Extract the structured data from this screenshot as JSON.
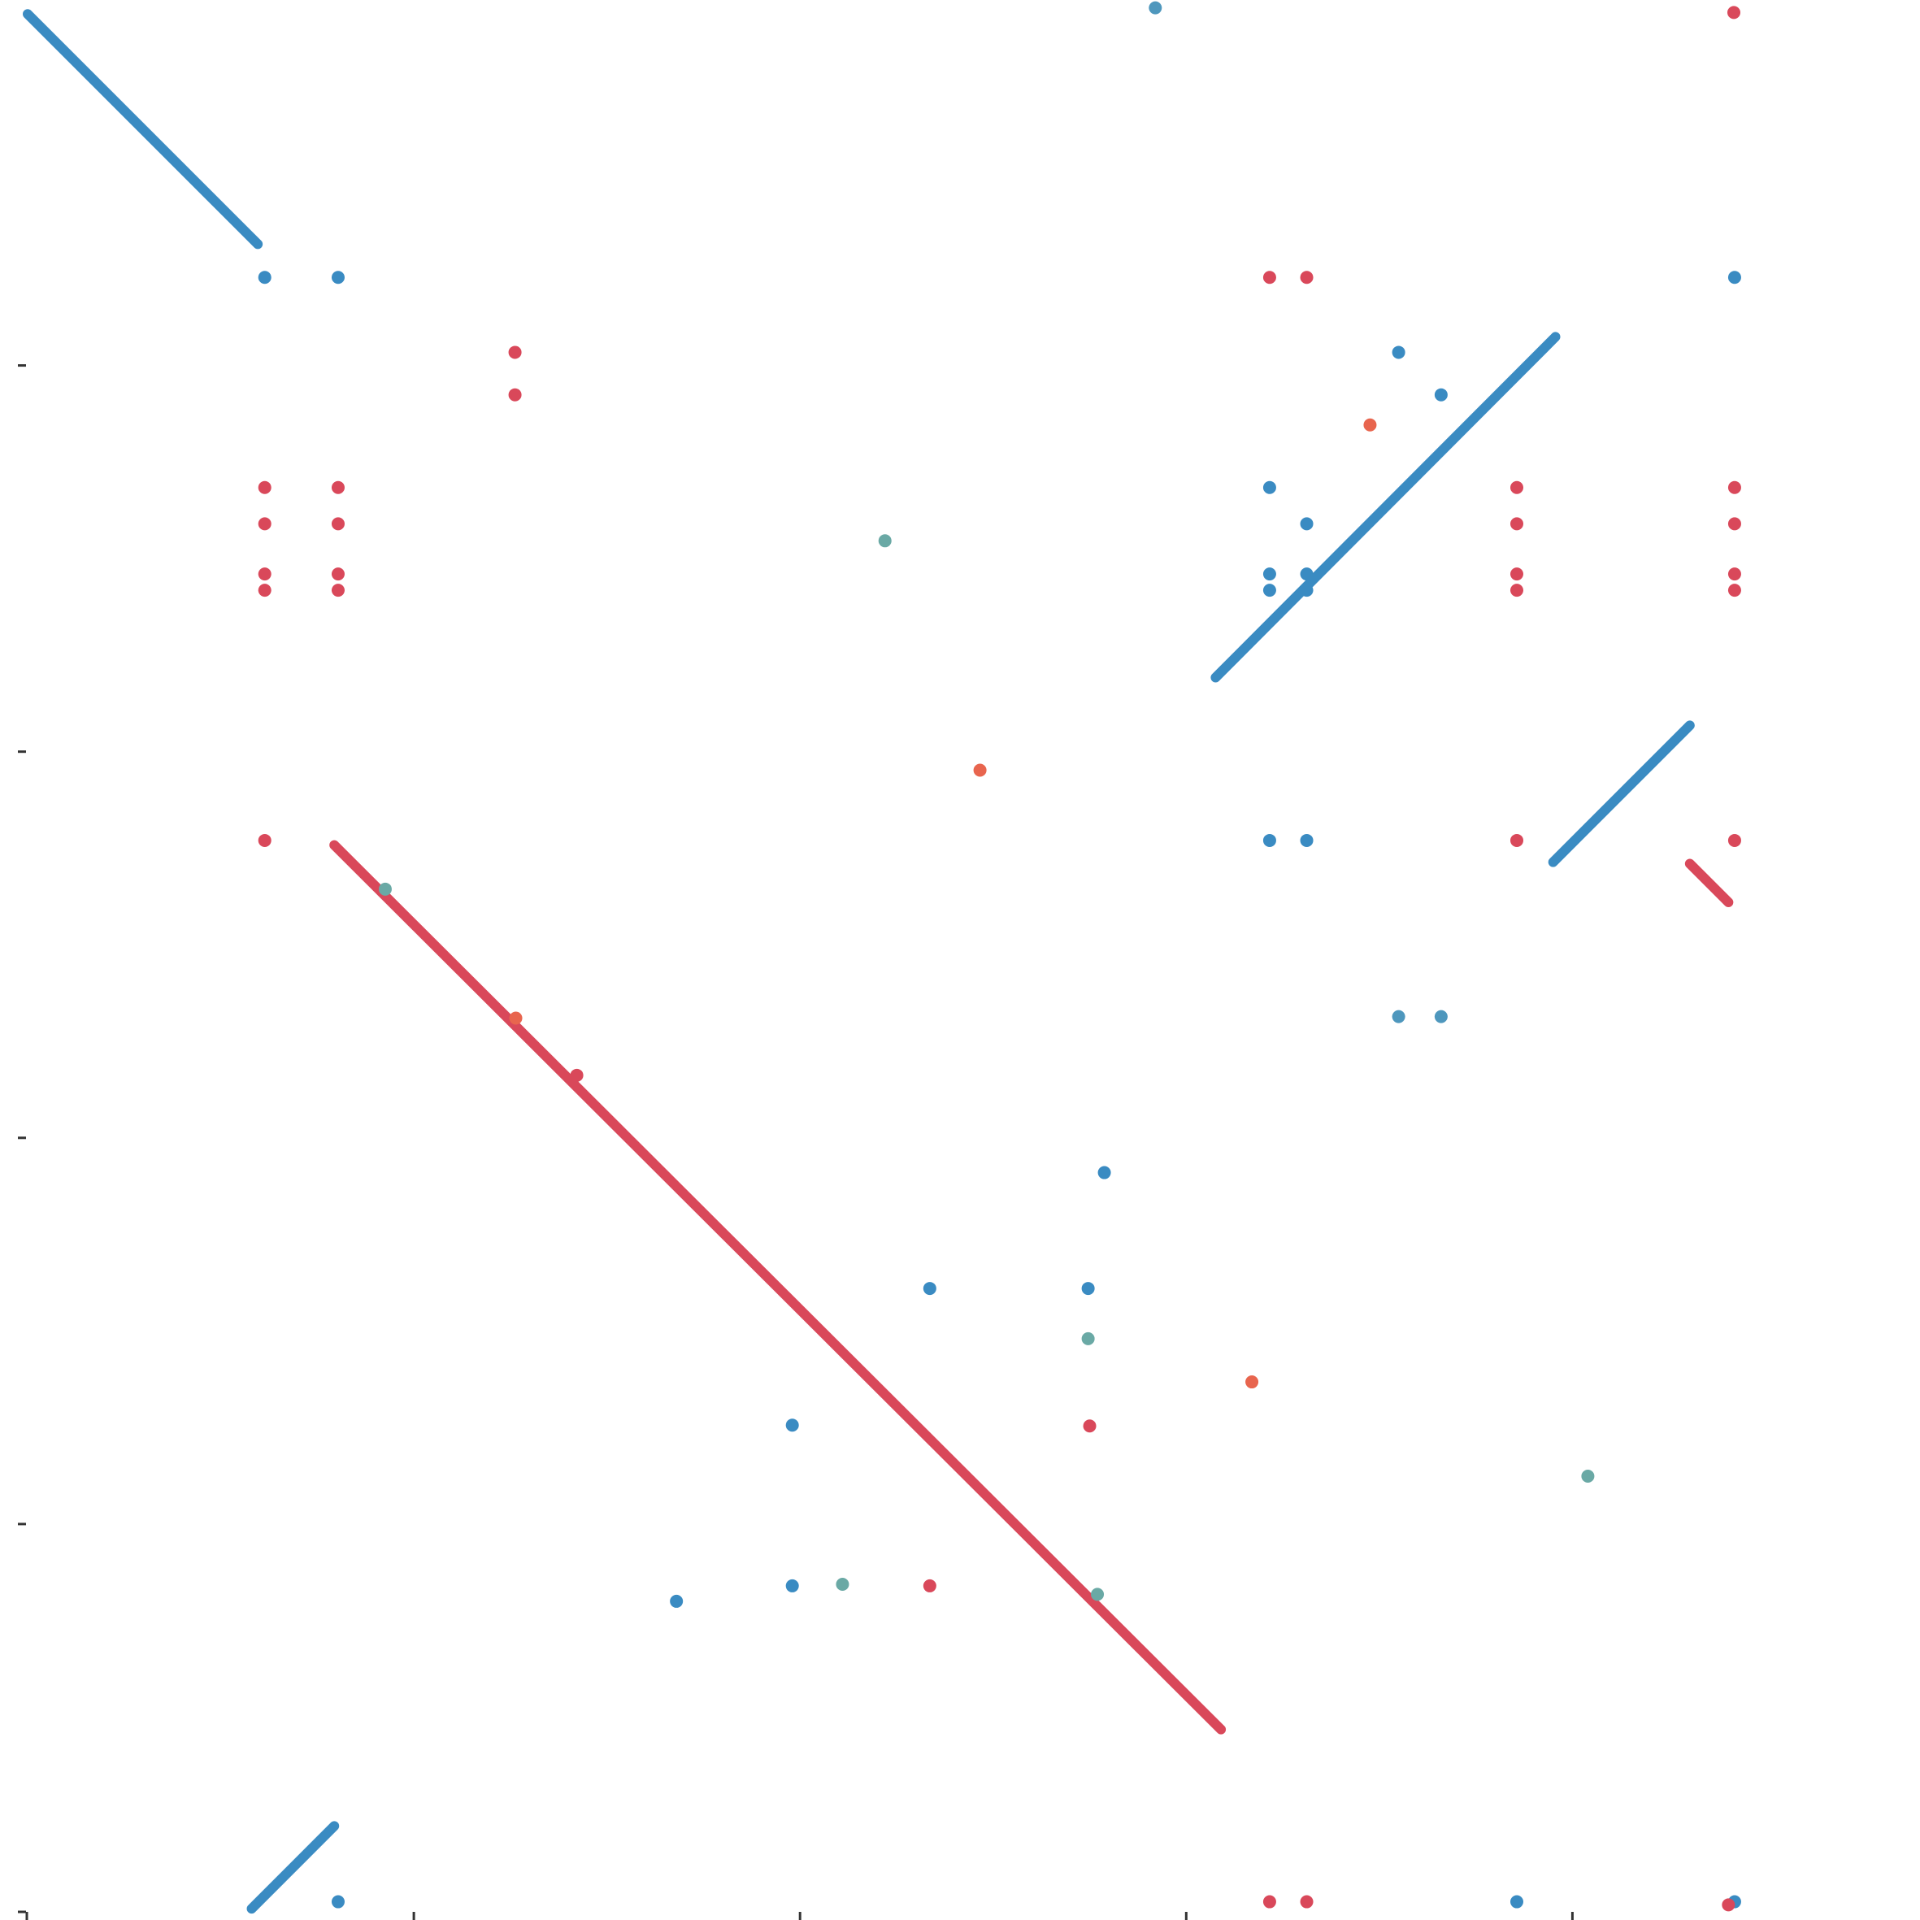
{
  "chart_data": {
    "type": "scatter",
    "title": "",
    "xlabel": "",
    "ylabel": "",
    "xlim": [
      0,
      2450
    ],
    "ylim": [
      0,
      2450
    ],
    "grid": false,
    "legend": "none",
    "x_ticks": [
      500,
      1000,
      1500,
      2000
    ],
    "y_ticks": [
      500,
      1000,
      1500,
      2000
    ],
    "colors": {
      "forward": "#3a8bc2",
      "reverse": "#d9485a",
      "teal": "#6aa9a5",
      "orange": "#e8654e",
      "steel": "#4e97bd",
      "axis": "#333333"
    },
    "segments": [
      {
        "x": [
          0,
          298
        ],
        "y": [
          2455,
          2157
        ],
        "color": "forward"
      },
      {
        "x": [
          1538,
          1978
        ],
        "y": [
          1596,
          2037
        ],
        "color": "forward"
      },
      {
        "x": [
          1975,
          2152
        ],
        "y": [
          1357,
          1534
        ],
        "color": "forward"
      },
      {
        "x": [
          290,
          397
        ],
        "y": [
          2,
          109
        ],
        "color": "forward"
      },
      {
        "x": [
          397,
          1545
        ],
        "y": [
          1379,
          234
        ],
        "color": "reverse"
      },
      {
        "x": [
          2152,
          2202
        ],
        "y": [
          1355,
          1305
        ],
        "color": "reverse"
      }
    ],
    "points": [
      {
        "x": 1460,
        "y": 2519,
        "color": "steel"
      },
      {
        "x": 1460,
        "y": 2463,
        "color": "steel"
      },
      {
        "x": 2209,
        "y": 2457,
        "color": "reverse"
      },
      {
        "x": 307,
        "y": 2114,
        "color": "forward"
      },
      {
        "x": 402,
        "y": 2114,
        "color": "forward"
      },
      {
        "x": 1608,
        "y": 2114,
        "color": "reverse"
      },
      {
        "x": 1656,
        "y": 2114,
        "color": "reverse"
      },
      {
        "x": 2210,
        "y": 2114,
        "color": "forward"
      },
      {
        "x": 631,
        "y": 2017,
        "color": "reverse"
      },
      {
        "x": 631,
        "y": 1962,
        "color": "reverse"
      },
      {
        "x": 1775,
        "y": 2017,
        "color": "forward"
      },
      {
        "x": 1830,
        "y": 1962,
        "color": "forward"
      },
      {
        "x": 1738,
        "y": 1923,
        "color": "orange"
      },
      {
        "x": 307,
        "y": 1842,
        "color": "reverse"
      },
      {
        "x": 402,
        "y": 1842,
        "color": "reverse"
      },
      {
        "x": 1608,
        "y": 1842,
        "color": "forward"
      },
      {
        "x": 1928,
        "y": 1842,
        "color": "reverse"
      },
      {
        "x": 2210,
        "y": 1842,
        "color": "reverse"
      },
      {
        "x": 307,
        "y": 1795,
        "color": "reverse"
      },
      {
        "x": 402,
        "y": 1795,
        "color": "reverse"
      },
      {
        "x": 1656,
        "y": 1795,
        "color": "forward"
      },
      {
        "x": 1928,
        "y": 1795,
        "color": "reverse"
      },
      {
        "x": 2210,
        "y": 1795,
        "color": "reverse"
      },
      {
        "x": 1110,
        "y": 1773,
        "color": "teal"
      },
      {
        "x": 307,
        "y": 1730,
        "color": "reverse"
      },
      {
        "x": 402,
        "y": 1730,
        "color": "reverse"
      },
      {
        "x": 1608,
        "y": 1730,
        "color": "forward"
      },
      {
        "x": 1656,
        "y": 1730,
        "color": "forward"
      },
      {
        "x": 1928,
        "y": 1730,
        "color": "reverse"
      },
      {
        "x": 2210,
        "y": 1730,
        "color": "reverse"
      },
      {
        "x": 307,
        "y": 1709,
        "color": "reverse"
      },
      {
        "x": 402,
        "y": 1709,
        "color": "reverse"
      },
      {
        "x": 1608,
        "y": 1709,
        "color": "forward"
      },
      {
        "x": 1656,
        "y": 1709,
        "color": "forward"
      },
      {
        "x": 1928,
        "y": 1709,
        "color": "reverse"
      },
      {
        "x": 2210,
        "y": 1709,
        "color": "reverse"
      },
      {
        "x": 1233,
        "y": 1476,
        "color": "orange"
      },
      {
        "x": 307,
        "y": 1385,
        "color": "reverse"
      },
      {
        "x": 1608,
        "y": 1385,
        "color": "forward"
      },
      {
        "x": 1656,
        "y": 1385,
        "color": "forward"
      },
      {
        "x": 1928,
        "y": 1385,
        "color": "reverse"
      },
      {
        "x": 2210,
        "y": 1385,
        "color": "reverse"
      },
      {
        "x": 463,
        "y": 1322,
        "color": "teal"
      },
      {
        "x": 632,
        "y": 1155,
        "color": "orange"
      },
      {
        "x": 711,
        "y": 1081,
        "color": "reverse"
      },
      {
        "x": 1775,
        "y": 1157,
        "color": "steel"
      },
      {
        "x": 1830,
        "y": 1157,
        "color": "steel"
      },
      {
        "x": 1394,
        "y": 955,
        "color": "forward"
      },
      {
        "x": 1168,
        "y": 805,
        "color": "forward"
      },
      {
        "x": 1373,
        "y": 805,
        "color": "forward"
      },
      {
        "x": 1373,
        "y": 740,
        "color": "teal"
      },
      {
        "x": 1585,
        "y": 684,
        "color": "orange"
      },
      {
        "x": 990,
        "y": 628,
        "color": "forward"
      },
      {
        "x": 1375,
        "y": 627,
        "color": "reverse"
      },
      {
        "x": 2020,
        "y": 562,
        "color": "teal"
      },
      {
        "x": 990,
        "y": 420,
        "color": "forward"
      },
      {
        "x": 1055,
        "y": 422,
        "color": "teal"
      },
      {
        "x": 1168,
        "y": 420,
        "color": "reverse"
      },
      {
        "x": 1385,
        "y": 409,
        "color": "teal"
      },
      {
        "x": 840,
        "y": 400,
        "color": "forward"
      },
      {
        "x": 402,
        "y": 11,
        "color": "forward"
      },
      {
        "x": 1608,
        "y": 11,
        "color": "reverse"
      },
      {
        "x": 1656,
        "y": 11,
        "color": "reverse"
      },
      {
        "x": 1928,
        "y": 11,
        "color": "forward"
      },
      {
        "x": 2210,
        "y": 11,
        "color": "forward"
      },
      {
        "x": 2202,
        "y": 7,
        "color": "reverse"
      }
    ]
  }
}
